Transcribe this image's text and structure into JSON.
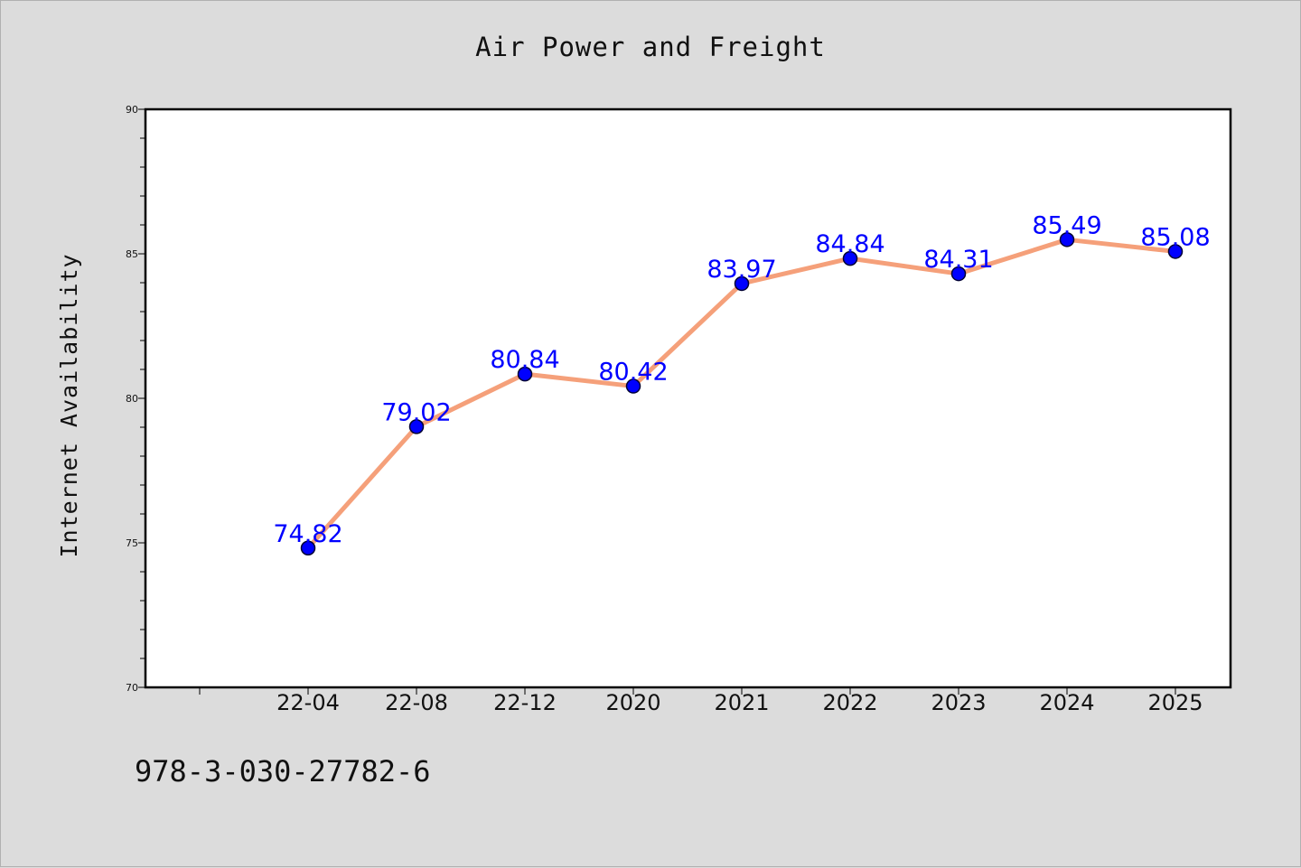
{
  "chart_data": {
    "type": "line",
    "title": "Air Power and Freight",
    "xlabel": "",
    "ylabel": "Internet Availability",
    "categories": [
      "22-04",
      "22-08",
      "22-12",
      "2020",
      "2021",
      "2022",
      "2023",
      "2024",
      "2025"
    ],
    "series": [
      {
        "values": [
          74.82,
          79.02,
          80.84,
          80.42,
          83.97,
          84.84,
          84.31,
          85.49,
          85.08
        ]
      }
    ],
    "ylim": [
      70,
      90
    ],
    "yticks": [
      70,
      75,
      80,
      85,
      90
    ],
    "grid": false,
    "legend": "none",
    "colors": {
      "line": "#f5a07a",
      "marker": "#0000ff",
      "marker_edge": "#000033",
      "data_label": "#0000ff",
      "background": "#dcdcdc",
      "plot_area": "#ffffff"
    }
  },
  "footer": {
    "isbn": "978-3-030-27782-6"
  }
}
